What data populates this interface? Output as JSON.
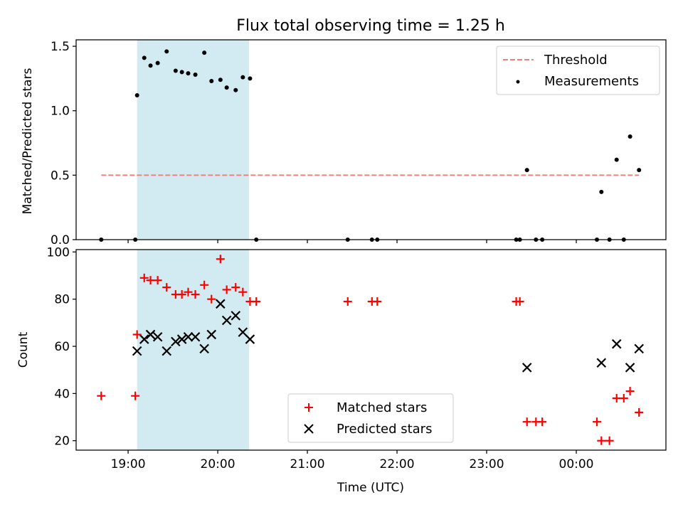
{
  "figure": {
    "title": "Flux total observing time = 1.25 h",
    "shaded_span": {
      "start_hours": 19.1,
      "end_hours": 20.35,
      "color": "#add8e6"
    }
  },
  "chart_data": [
    {
      "type": "scatter",
      "ylabel": "Matched/Predicted stars",
      "xlim_hours": [
        18.42,
        25.0
      ],
      "ylim": [
        0,
        1.55
      ],
      "yticks": [
        0.0,
        0.5,
        1.0,
        1.5
      ],
      "ytick_labels": [
        "0.0",
        "0.5",
        "1.0",
        "1.5"
      ],
      "threshold": {
        "name": "Threshold",
        "value": 0.5,
        "x_range_hours": [
          18.7,
          24.7
        ],
        "color": "#f08080",
        "style": "dashed"
      },
      "series": [
        {
          "name": "Measurements",
          "marker": "dot",
          "color": "#000000",
          "x_hours": [
            18.7,
            19.08,
            19.1,
            19.18,
            19.25,
            19.33,
            19.43,
            19.53,
            19.6,
            19.67,
            19.75,
            19.85,
            19.93,
            20.03,
            20.1,
            20.2,
            20.28,
            20.36,
            20.43,
            21.45,
            21.72,
            21.78,
            23.33,
            23.37,
            23.45,
            23.55,
            23.62,
            24.23,
            24.28,
            24.37,
            24.45,
            24.53,
            24.6,
            24.7
          ],
          "y": [
            0,
            0,
            1.12,
            1.41,
            1.35,
            1.37,
            1.46,
            1.31,
            1.3,
            1.29,
            1.28,
            1.45,
            1.23,
            1.24,
            1.18,
            1.16,
            1.26,
            1.25,
            0,
            0,
            0,
            0,
            0,
            0,
            0.54,
            0,
            0,
            0,
            0.37,
            0,
            0.62,
            0,
            0.8,
            0.54
          ]
        }
      ],
      "legend": {
        "position": "top-right",
        "entries": [
          "Threshold",
          "Measurements"
        ]
      }
    },
    {
      "type": "scatter",
      "ylabel": "Count",
      "xlabel": "Time (UTC)",
      "xlim_hours": [
        18.42,
        25.0
      ],
      "ylim": [
        16,
        101
      ],
      "yticks": [
        20,
        40,
        60,
        80,
        100
      ],
      "ytick_labels": [
        "20",
        "40",
        "60",
        "80",
        "100"
      ],
      "xticks_hours": [
        19,
        20,
        21,
        22,
        23,
        24
      ],
      "xtick_labels": [
        "19:00",
        "20:00",
        "21:00",
        "22:00",
        "23:00",
        "00:00"
      ],
      "series": [
        {
          "name": "Matched stars",
          "marker": "plus",
          "color": "#ff0000",
          "x_hours": [
            18.7,
            19.08,
            19.1,
            19.18,
            19.25,
            19.33,
            19.43,
            19.53,
            19.6,
            19.67,
            19.75,
            19.85,
            19.93,
            20.03,
            20.1,
            20.2,
            20.28,
            20.36,
            20.43,
            21.45,
            21.72,
            21.78,
            23.33,
            23.37,
            23.45,
            23.55,
            23.62,
            24.23,
            24.28,
            24.37,
            24.45,
            24.53,
            24.6,
            24.7
          ],
          "y": [
            39,
            39,
            65,
            89,
            88,
            88,
            85,
            82,
            82,
            83,
            82,
            86,
            80,
            97,
            84,
            85,
            83,
            79,
            79,
            79,
            79,
            79,
            79,
            79,
            28,
            28,
            28,
            28,
            20,
            20,
            38,
            38,
            41,
            32
          ]
        },
        {
          "name": "Predicted stars",
          "marker": "x",
          "color": "#000000",
          "x_hours": [
            19.1,
            19.18,
            19.25,
            19.33,
            19.43,
            19.53,
            19.6,
            19.67,
            19.75,
            19.85,
            19.93,
            20.03,
            20.1,
            20.2,
            20.28,
            20.36,
            23.45,
            24.28,
            24.45,
            24.6,
            24.7
          ],
          "y": [
            58,
            63,
            65,
            64,
            58,
            62,
            63,
            64,
            64,
            59,
            65,
            78,
            71,
            73,
            66,
            63,
            51,
            53,
            61,
            51,
            59
          ]
        }
      ],
      "legend": {
        "position": "bottom-center",
        "entries": [
          "Matched stars",
          "Predicted stars"
        ]
      }
    }
  ]
}
